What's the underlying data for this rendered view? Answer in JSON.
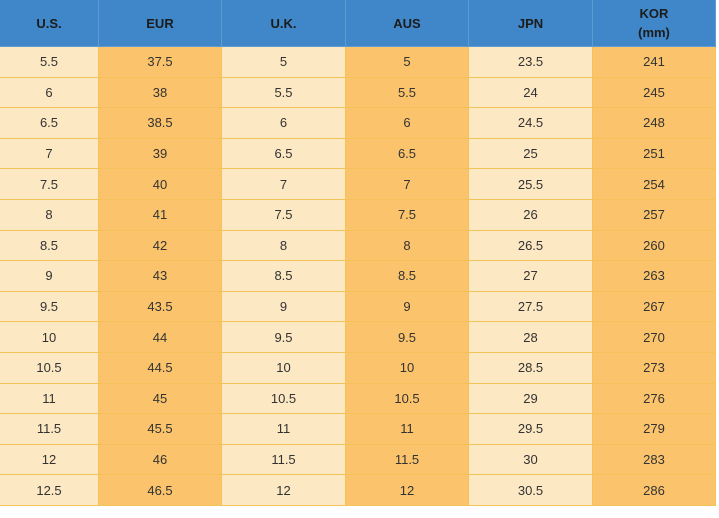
{
  "table": {
    "columns": [
      [
        "U.S."
      ],
      [
        "EUR"
      ],
      [
        "U.K."
      ],
      [
        "AUS"
      ],
      [
        "JPN"
      ],
      [
        "KOR",
        "(mm)"
      ]
    ],
    "rows": [
      [
        5.5,
        37.5,
        5,
        5,
        23.5,
        241
      ],
      [
        6,
        38,
        5.5,
        5.5,
        24,
        245
      ],
      [
        6.5,
        38.5,
        6,
        6,
        24.5,
        248
      ],
      [
        7,
        39,
        6.5,
        6.5,
        25,
        251
      ],
      [
        7.5,
        40,
        7,
        7,
        25.5,
        254
      ],
      [
        8,
        41,
        7.5,
        7.5,
        26,
        257
      ],
      [
        8.5,
        42,
        8,
        8,
        26.5,
        260
      ],
      [
        9,
        43,
        8.5,
        8.5,
        27,
        263
      ],
      [
        9.5,
        43.5,
        9,
        9,
        27.5,
        267
      ],
      [
        10,
        44,
        9.5,
        9.5,
        28,
        270
      ],
      [
        10.5,
        44.5,
        10,
        10,
        28.5,
        273
      ],
      [
        11,
        45,
        10.5,
        10.5,
        29,
        276
      ],
      [
        11.5,
        45.5,
        11,
        11,
        29.5,
        279
      ],
      [
        12,
        46,
        11.5,
        11.5,
        30,
        283
      ],
      [
        12.5,
        46.5,
        12,
        12,
        30.5,
        286
      ]
    ]
  }
}
